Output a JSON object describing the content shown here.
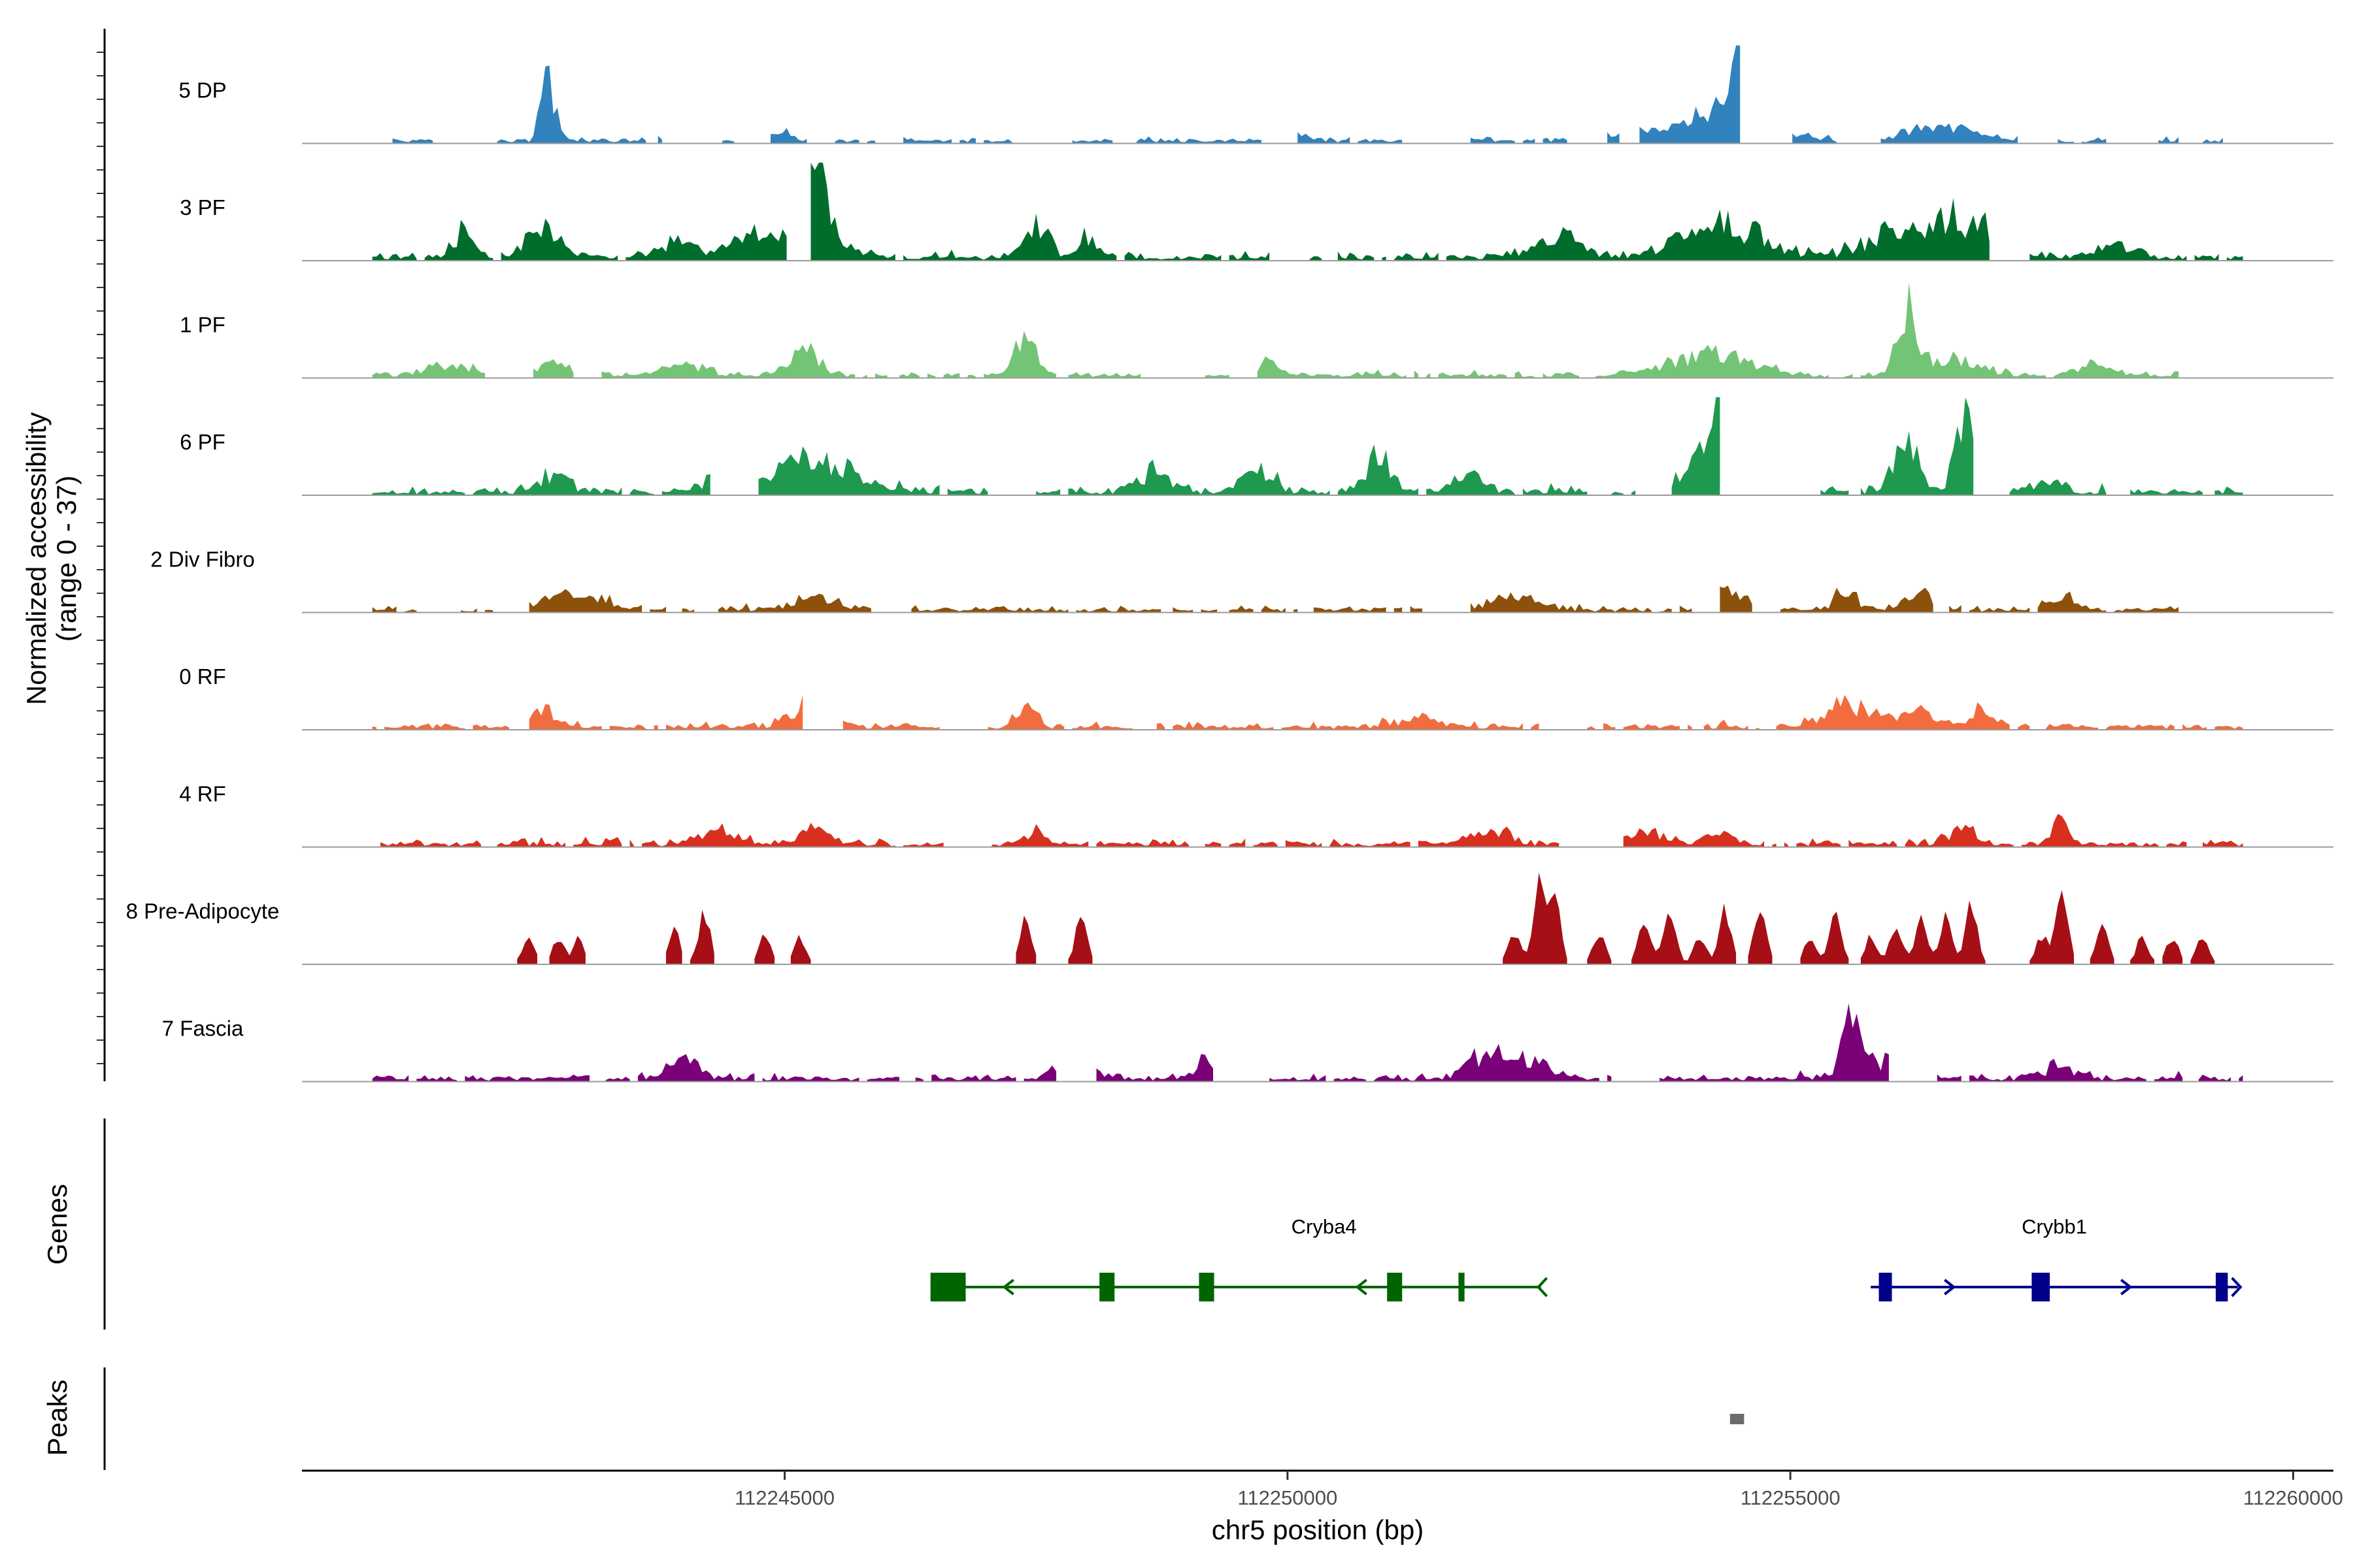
{
  "chart_data": {
    "type": "area",
    "title": "",
    "chromosome": "chr5",
    "xlabel": "chr5 position (bp)",
    "ylabel": "Normalized accessibility",
    "ylabel_range": "(range 0 - 37)",
    "ylim": [
      0,
      37
    ],
    "xlim": [
      112240200,
      112260400
    ],
    "x_ticks": [
      112245000,
      112250000,
      112255000,
      112260000
    ],
    "x_tick_labels": [
      "112245000",
      "112250000",
      "112255000",
      "112260000"
    ],
    "signal_start": 112241000,
    "signal_end": 112259500,
    "bin_bp": 40,
    "tracks": [
      {
        "name": "5 DP",
        "color": "#3182bd",
        "scale": 17,
        "noise": 0.16,
        "gap_prob": 0.45,
        "start": 112241100,
        "end": 112259300,
        "peaks": [
          [
            112242650,
            70,
            24
          ],
          [
            112244900,
            150,
            4
          ],
          [
            112250000,
            160,
            4
          ],
          [
            112254200,
            500,
            10
          ],
          [
            112254450,
            90,
            22
          ],
          [
            112254700,
            90,
            14
          ],
          [
            112256500,
            350,
            5
          ],
          [
            112258300,
            120,
            4
          ]
        ]
      },
      {
        "name": "3 PF",
        "color": "#006d2c",
        "scale": 17,
        "noise": 0.22,
        "gap_prob": 0.2,
        "start": 112240900,
        "end": 112259500,
        "peaks": [
          [
            112241800,
            90,
            10
          ],
          [
            112242600,
            150,
            12
          ],
          [
            112243900,
            180,
            5
          ],
          [
            112245000,
            400,
            10
          ],
          [
            112245350,
            90,
            28
          ],
          [
            112247500,
            120,
            12
          ],
          [
            112248000,
            100,
            8
          ],
          [
            112252700,
            250,
            7
          ],
          [
            112254300,
            400,
            13
          ],
          [
            112256200,
            350,
            12
          ],
          [
            112256800,
            300,
            10
          ],
          [
            112258200,
            200,
            5
          ]
        ]
      },
      {
        "name": "1 PF",
        "color": "#74c476",
        "scale": 17,
        "noise": 0.16,
        "gap_prob": 0.1,
        "start": 112240900,
        "end": 112259500,
        "peaks": [
          [
            112241700,
            250,
            4
          ],
          [
            112242700,
            120,
            5
          ],
          [
            112244000,
            250,
            3
          ],
          [
            112245200,
            150,
            10
          ],
          [
            112247400,
            90,
            20
          ],
          [
            112249800,
            100,
            5
          ],
          [
            112254200,
            400,
            8
          ],
          [
            112256150,
            90,
            24
          ],
          [
            112256600,
            300,
            6
          ],
          [
            112258000,
            200,
            4
          ]
        ]
      },
      {
        "name": "6 PF",
        "color": "#1f9850",
        "scale": 17,
        "noise": 0.22,
        "gap_prob": 0.22,
        "start": 112240900,
        "end": 112259500,
        "peaks": [
          [
            112242700,
            150,
            7
          ],
          [
            112244300,
            150,
            5
          ],
          [
            112245300,
            350,
            13
          ],
          [
            112248700,
            150,
            8
          ],
          [
            112249700,
            150,
            8
          ],
          [
            112250900,
            120,
            12
          ],
          [
            112251800,
            150,
            6
          ],
          [
            112254300,
            250,
            18
          ],
          [
            112254600,
            300,
            22
          ],
          [
            112256150,
            120,
            20
          ],
          [
            112256750,
            100,
            32
          ],
          [
            112257500,
            150,
            4
          ]
        ]
      },
      {
        "name": "2 Div Fibro",
        "color": "#8c510a",
        "scale": 17,
        "noise": 0.18,
        "gap_prob": 0.22,
        "start": 112240900,
        "end": 112259500,
        "peaks": [
          [
            112242900,
            300,
            5
          ],
          [
            112245300,
            200,
            5
          ],
          [
            112252200,
            250,
            5
          ],
          [
            112254400,
            200,
            6
          ],
          [
            112255550,
            80,
            10
          ],
          [
            112256300,
            150,
            6
          ],
          [
            112257700,
            120,
            5
          ]
        ]
      },
      {
        "name": "0 RF",
        "color": "#f16d3f",
        "scale": 17,
        "noise": 0.18,
        "gap_prob": 0.12,
        "start": 112240900,
        "end": 112259500,
        "peaks": [
          [
            112242600,
            120,
            6
          ],
          [
            112245300,
            200,
            9
          ],
          [
            112247400,
            100,
            9
          ],
          [
            112251300,
            200,
            4
          ],
          [
            112255600,
            250,
            9
          ],
          [
            112256300,
            150,
            7
          ],
          [
            112256900,
            120,
            6
          ]
        ]
      },
      {
        "name": "4 RF",
        "color": "#d7301f",
        "scale": 17,
        "noise": 0.2,
        "gap_prob": 0.18,
        "start": 112240900,
        "end": 112259500,
        "peaks": [
          [
            112244400,
            200,
            5
          ],
          [
            112245300,
            150,
            6
          ],
          [
            112247500,
            100,
            5
          ],
          [
            112252000,
            200,
            5
          ],
          [
            112253500,
            200,
            5
          ],
          [
            112254300,
            150,
            4
          ],
          [
            112256700,
            150,
            5
          ],
          [
            112257700,
            80,
            10
          ]
        ]
      },
      {
        "name": "8 Pre-Adipocyte",
        "color": "#a50f15",
        "scale": 17,
        "noise": 0.0,
        "gap_prob": 0.0,
        "start": 112240900,
        "end": 112259500,
        "peaks": [
          [
            112242450,
            60,
            12
          ],
          [
            112242750,
            60,
            12
          ],
          [
            112242950,
            50,
            12
          ],
          [
            112243900,
            50,
            18
          ],
          [
            112244200,
            60,
            22
          ],
          [
            112244800,
            60,
            12
          ],
          [
            112245150,
            60,
            12
          ],
          [
            112247400,
            60,
            20
          ],
          [
            112247950,
            60,
            20
          ],
          [
            112252250,
            60,
            14
          ],
          [
            112252500,
            60,
            36
          ],
          [
            112252650,
            60,
            30
          ],
          [
            112253100,
            60,
            14
          ],
          [
            112253550,
            60,
            20
          ],
          [
            112253800,
            60,
            24
          ],
          [
            112254100,
            60,
            12
          ],
          [
            112254350,
            60,
            24
          ],
          [
            112254700,
            60,
            28
          ],
          [
            112255200,
            60,
            12
          ],
          [
            112255450,
            60,
            24
          ],
          [
            112255800,
            60,
            12
          ],
          [
            112256050,
            60,
            18
          ],
          [
            112256300,
            60,
            20
          ],
          [
            112256550,
            60,
            22
          ],
          [
            112256800,
            60,
            26
          ],
          [
            112257500,
            60,
            12
          ],
          [
            112257700,
            60,
            34
          ],
          [
            112258100,
            60,
            18
          ],
          [
            112258500,
            60,
            12
          ],
          [
            112258800,
            60,
            12
          ],
          [
            112259100,
            60,
            12
          ]
        ]
      },
      {
        "name": "7 Fascia",
        "color": "#7a0177",
        "scale": 17,
        "noise": 0.2,
        "gap_prob": 0.18,
        "start": 112240900,
        "end": 112259500,
        "peaks": [
          [
            112244000,
            150,
            8
          ],
          [
            112247900,
            200,
            6
          ],
          [
            112249200,
            120,
            6
          ],
          [
            112252000,
            200,
            10
          ],
          [
            112252500,
            150,
            7
          ],
          [
            112255600,
            90,
            18
          ],
          [
            112256000,
            250,
            7
          ],
          [
            112257700,
            150,
            5
          ]
        ]
      }
    ],
    "genes": [
      {
        "name": "Cryba4",
        "strand": "-",
        "color": "#006400",
        "start": 112246450,
        "end": 112252520,
        "exons": [
          [
            112246450,
            112246800
          ],
          [
            112248130,
            112248280
          ],
          [
            112249120,
            112249270
          ],
          [
            112250990,
            112251140
          ],
          [
            112251700,
            112251760
          ]
        ]
      },
      {
        "name": "Crybb1",
        "strand": "+",
        "color": "#00008b",
        "start": 112255800,
        "end": 112259450,
        "exons": [
          [
            112255880,
            112256010
          ],
          [
            112257400,
            112257580
          ],
          [
            112259230,
            112259350
          ]
        ]
      }
    ],
    "peaks_track": [
      [
        112254400,
        112254540
      ]
    ],
    "panel_labels": {
      "genes": "Genes",
      "peaks": "Peaks"
    }
  }
}
